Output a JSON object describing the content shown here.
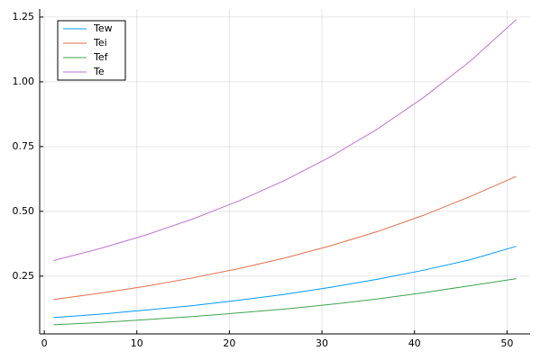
{
  "chart_data": {
    "type": "line",
    "x": [
      1,
      6,
      11,
      16,
      21,
      26,
      31,
      36,
      41,
      46,
      51
    ],
    "series": [
      {
        "name": "Tew",
        "color": "#009af9",
        "values": [
          0.09,
          0.103,
          0.119,
          0.136,
          0.157,
          0.18,
          0.207,
          0.238,
          0.273,
          0.313,
          0.365
        ]
      },
      {
        "name": "Tei",
        "color": "#e26f46",
        "values": [
          0.16,
          0.184,
          0.211,
          0.243,
          0.279,
          0.32,
          0.368,
          0.422,
          0.485,
          0.557,
          0.635
        ]
      },
      {
        "name": "Tef",
        "color": "#3ea44e",
        "values": [
          0.062,
          0.071,
          0.082,
          0.094,
          0.108,
          0.123,
          0.141,
          0.162,
          0.186,
          0.213,
          0.24
        ]
      },
      {
        "name": "Te",
        "color": "#c271d2",
        "values": [
          0.31,
          0.356,
          0.409,
          0.47,
          0.54,
          0.62,
          0.712,
          0.818,
          0.94,
          1.079,
          1.24
        ]
      }
    ],
    "xlim": [
      -0.5,
      52.5
    ],
    "xticks": [
      0,
      10,
      20,
      30,
      40,
      50
    ],
    "ylim": [
      0.027,
      1.281
    ],
    "yticks": [
      0.25,
      {
        "value": 0.5,
        "label": "0.50"
      },
      0.75,
      {
        "value": 1,
        "label": "1.00"
      },
      1.25
    ],
    "grid": true,
    "legend": "top-left"
  }
}
